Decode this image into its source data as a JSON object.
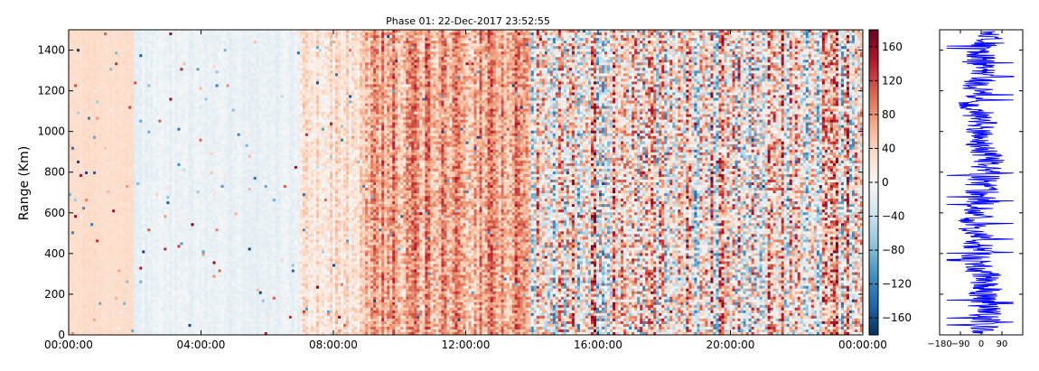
{
  "chart_data": [
    {
      "type": "heatmap",
      "title": "Phase 01: 22-Dec-2017 23:52:55",
      "xlabel": "",
      "ylabel": "Range (Km)",
      "x_ticks": [
        "00:00:00",
        "04:00:00",
        "08:00:00",
        "12:00:00",
        "16:00:00",
        "20:00:00",
        "00:00:00"
      ],
      "x_range_hours": [
        0,
        24
      ],
      "y_ticks": [
        0,
        200,
        400,
        600,
        800,
        1000,
        1200,
        1400
      ],
      "ylim": [
        0,
        1500
      ],
      "colormap": "RdBu_r",
      "colorbar": {
        "ticks": [
          -160,
          -120,
          -80,
          -40,
          0,
          40,
          80,
          120,
          160
        ],
        "range": [
          -180,
          180
        ],
        "colors": [
          "#053061",
          "#2166ac",
          "#4393c3",
          "#92c5de",
          "#d1e5f0",
          "#f7f7f7",
          "#fddbc7",
          "#f4a582",
          "#d6604d",
          "#b2182b",
          "#67001f"
        ]
      },
      "time_segments": [
        {
          "start": 0,
          "end": 2,
          "mean": 32,
          "spread": 8
        },
        {
          "start": 2,
          "end": 7,
          "mean": -12,
          "spread": 14
        },
        {
          "start": 7,
          "end": 9,
          "mean": 25,
          "spread": 45
        },
        {
          "start": 9,
          "end": 14,
          "mean": 75,
          "spread": 75
        },
        {
          "start": 14,
          "end": 24,
          "mean": 20,
          "spread": 160
        }
      ]
    },
    {
      "type": "line",
      "x_ticks": [
        "−180",
        "−90",
        "0",
        "90"
      ],
      "xlim": [
        -180,
        180
      ],
      "ylim": [
        0,
        1500
      ],
      "color": "#0000ff",
      "note_values": "phase profile vs range"
    }
  ]
}
